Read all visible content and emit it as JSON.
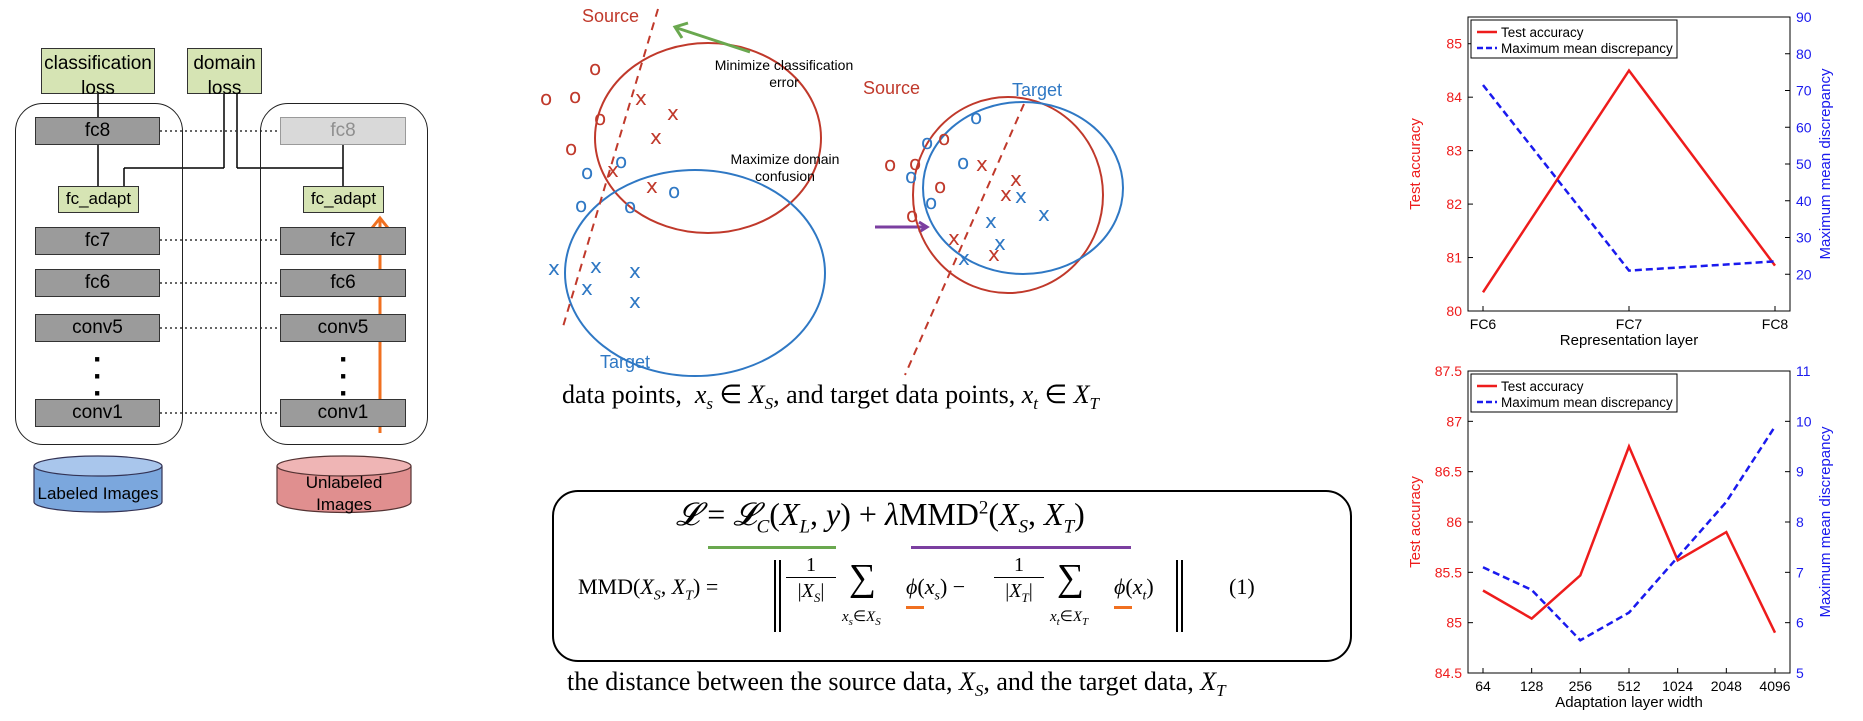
{
  "architecture": {
    "classification_loss": [
      "classification",
      "loss"
    ],
    "domain_loss": [
      "domain",
      "loss"
    ],
    "source_layers": [
      "fc8",
      "fc7",
      "fc6",
      "conv5",
      "conv1"
    ],
    "target_layers": [
      "fc8",
      "fc7",
      "fc6",
      "conv5",
      "conv1"
    ],
    "fc_adapt": "fc_adapt",
    "labeled": [
      "Labeled Images"
    ],
    "unlabeled": [
      "Unlabeled",
      "Images"
    ],
    "colors": {
      "loss_fill": "#d6e4b4",
      "layer_fill": "#9b9b9b",
      "labeled_fill": "#7ba7dd",
      "unlabeled_fill": "#e08f8f",
      "arrow": "#f07020"
    }
  },
  "scatter_diagram": {
    "source": "Source",
    "target": "Target",
    "minimize": [
      "Minimize classification",
      "error"
    ],
    "maximize": [
      "Maximize domain",
      "confusion"
    ],
    "colors": {
      "source": "#c0392b",
      "target": "#2f78c4",
      "green_arrow": "#6aa84f",
      "purple_arrow": "#7b3fa0"
    }
  },
  "text": {
    "top_sentence": "data points,  x_s ∈ X_S, and target data points, x_t ∈ X_T",
    "bottom_sentence": "the distance between the source data, X_S, and the target data, X_T",
    "equation_number": "(1)"
  },
  "chart_data": [
    {
      "type": "line",
      "x": [
        "FC6",
        "FC7",
        "FC8"
      ],
      "xlabel": "Representation layer",
      "ylabel": "Test accuracy",
      "ylabel_right": "Maximum mean discrepancy",
      "ylim": [
        80,
        85.5
      ],
      "ylim_right": [
        10,
        90
      ],
      "yticks": [
        "80",
        "81",
        "82",
        "83",
        "84",
        "85"
      ],
      "yticks_right": [
        "20",
        "30",
        "40",
        "50",
        "60",
        "70",
        "80",
        "90"
      ],
      "series": [
        {
          "name": "Test accuracy",
          "axis": "left",
          "color": "#ee1c1c",
          "style": "solid",
          "values": [
            80.35,
            84.5,
            80.85
          ]
        },
        {
          "name": "Maximum mean discrepancy",
          "axis": "right",
          "color": "#1a1aee",
          "style": "dashed",
          "values": [
            71.5,
            21.0,
            23.5
          ]
        }
      ],
      "legend": "top-left"
    },
    {
      "type": "line",
      "x": [
        "64",
        "128",
        "256",
        "512",
        "1024",
        "2048",
        "4096"
      ],
      "xlabel": "Adaptation layer width",
      "ylabel": "Test accuracy",
      "ylabel_right": "Maximum mean discrepancy",
      "ylim": [
        84.5,
        87.5
      ],
      "ylim_right": [
        5,
        11
      ],
      "yticks": [
        "84.5",
        "85",
        "85.5",
        "86",
        "86.5",
        "87",
        "87.5"
      ],
      "yticks_right": [
        "5",
        "6",
        "7",
        "8",
        "9",
        "10",
        "11"
      ],
      "series": [
        {
          "name": "Test accuracy",
          "axis": "left",
          "color": "#ee1c1c",
          "style": "solid",
          "values": [
            85.32,
            85.04,
            85.47,
            86.75,
            85.62,
            85.9,
            84.9
          ]
        },
        {
          "name": "Maximum mean discrepancy",
          "axis": "right",
          "color": "#1a1aee",
          "style": "dashed",
          "values": [
            7.1,
            6.65,
            5.65,
            6.2,
            7.3,
            8.4,
            9.9
          ]
        }
      ],
      "legend": "top-left"
    }
  ]
}
